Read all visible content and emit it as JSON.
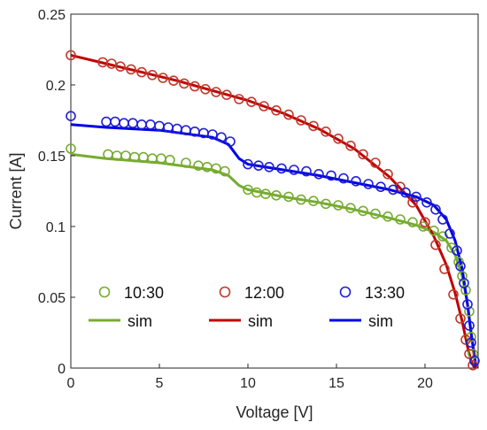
{
  "chart_data": {
    "type": "scatter",
    "xlabel": "Voltage [V]",
    "ylabel": "Current [A]",
    "xlim": [
      0,
      23
    ],
    "ylim": [
      0,
      0.25
    ],
    "xticks": [
      "0",
      "5",
      "10",
      "15",
      "20"
    ],
    "yticks": [
      "0",
      "0.05",
      "0.1",
      "0.15",
      "0.2",
      "0.25"
    ],
    "grid": false,
    "legend_position": "bottom-inside",
    "series": [
      {
        "name": "10:30",
        "kind": "measured",
        "color": "#77ac30",
        "points": [
          [
            0,
            0.155
          ],
          [
            2.1,
            0.151
          ],
          [
            2.6,
            0.15
          ],
          [
            3.1,
            0.15
          ],
          [
            3.6,
            0.149
          ],
          [
            4.1,
            0.149
          ],
          [
            4.6,
            0.148
          ],
          [
            5.1,
            0.148
          ],
          [
            5.6,
            0.147
          ],
          [
            6.5,
            0.145
          ],
          [
            7.2,
            0.143
          ],
          [
            7.7,
            0.142
          ],
          [
            8.2,
            0.141
          ],
          [
            8.7,
            0.139
          ],
          [
            10.0,
            0.126
          ],
          [
            10.5,
            0.124
          ],
          [
            11.0,
            0.123
          ],
          [
            11.6,
            0.122
          ],
          [
            12.3,
            0.121
          ],
          [
            13.0,
            0.119
          ],
          [
            13.7,
            0.118
          ],
          [
            14.4,
            0.116
          ],
          [
            15.1,
            0.115
          ],
          [
            15.8,
            0.113
          ],
          [
            16.5,
            0.111
          ],
          [
            17.2,
            0.109
          ],
          [
            17.9,
            0.107
          ],
          [
            18.6,
            0.105
          ],
          [
            19.3,
            0.103
          ],
          [
            19.9,
            0.1
          ],
          [
            20.5,
            0.097
          ],
          [
            21.0,
            0.093
          ],
          [
            21.5,
            0.085
          ],
          [
            21.9,
            0.075
          ],
          [
            22.1,
            0.065
          ],
          [
            22.3,
            0.055
          ],
          [
            22.5,
            0.04
          ],
          [
            22.6,
            0.022
          ],
          [
            22.7,
            0.01
          ]
        ]
      },
      {
        "name": "12:00",
        "kind": "measured",
        "color": "#c0392b",
        "points": [
          [
            0,
            0.221
          ],
          [
            1.8,
            0.216
          ],
          [
            2.3,
            0.215
          ],
          [
            2.8,
            0.213
          ],
          [
            3.4,
            0.211
          ],
          [
            4.0,
            0.209
          ],
          [
            4.6,
            0.207
          ],
          [
            5.2,
            0.205
          ],
          [
            5.8,
            0.203
          ],
          [
            6.4,
            0.201
          ],
          [
            7.0,
            0.199
          ],
          [
            7.6,
            0.197
          ],
          [
            8.2,
            0.195
          ],
          [
            8.8,
            0.193
          ],
          [
            9.5,
            0.19
          ],
          [
            10.2,
            0.188
          ],
          [
            10.9,
            0.185
          ],
          [
            11.6,
            0.182
          ],
          [
            12.3,
            0.179
          ],
          [
            13.0,
            0.175
          ],
          [
            13.7,
            0.171
          ],
          [
            14.4,
            0.167
          ],
          [
            15.1,
            0.162
          ],
          [
            15.8,
            0.157
          ],
          [
            16.5,
            0.151
          ],
          [
            17.2,
            0.145
          ],
          [
            17.9,
            0.137
          ],
          [
            18.6,
            0.128
          ],
          [
            19.3,
            0.117
          ],
          [
            20.0,
            0.103
          ],
          [
            20.6,
            0.087
          ],
          [
            21.1,
            0.07
          ],
          [
            21.6,
            0.052
          ],
          [
            22.0,
            0.035
          ],
          [
            22.3,
            0.02
          ],
          [
            22.5,
            0.01
          ],
          [
            22.7,
            0.002
          ]
        ]
      },
      {
        "name": "13:30",
        "kind": "measured",
        "color": "#1f1fd6",
        "points": [
          [
            0,
            0.178
          ],
          [
            2.0,
            0.174
          ],
          [
            2.5,
            0.174
          ],
          [
            3.0,
            0.173
          ],
          [
            3.5,
            0.173
          ],
          [
            4.0,
            0.172
          ],
          [
            4.5,
            0.172
          ],
          [
            5.0,
            0.171
          ],
          [
            5.5,
            0.17
          ],
          [
            6.0,
            0.169
          ],
          [
            6.5,
            0.168
          ],
          [
            7.0,
            0.167
          ],
          [
            7.5,
            0.166
          ],
          [
            8.0,
            0.165
          ],
          [
            8.5,
            0.163
          ],
          [
            9.0,
            0.16
          ],
          [
            10.0,
            0.144
          ],
          [
            10.6,
            0.143
          ],
          [
            11.2,
            0.142
          ],
          [
            11.9,
            0.141
          ],
          [
            12.6,
            0.14
          ],
          [
            13.3,
            0.139
          ],
          [
            14.0,
            0.137
          ],
          [
            14.7,
            0.136
          ],
          [
            15.4,
            0.134
          ],
          [
            16.1,
            0.132
          ],
          [
            16.8,
            0.13
          ],
          [
            17.5,
            0.128
          ],
          [
            18.2,
            0.126
          ],
          [
            18.9,
            0.124
          ],
          [
            19.5,
            0.121
          ],
          [
            20.1,
            0.117
          ],
          [
            20.6,
            0.112
          ],
          [
            21.0,
            0.105
          ],
          [
            21.4,
            0.095
          ],
          [
            21.8,
            0.083
          ],
          [
            22.0,
            0.072
          ],
          [
            22.2,
            0.06
          ],
          [
            22.4,
            0.045
          ],
          [
            22.5,
            0.03
          ],
          [
            22.6,
            0.018
          ],
          [
            22.8,
            0.005
          ]
        ]
      },
      {
        "name": "sim",
        "kind": "simulated",
        "group": "10:30",
        "color": "#77ac30",
        "points": [
          [
            0,
            0.151
          ],
          [
            2,
            0.148
          ],
          [
            5,
            0.145
          ],
          [
            8,
            0.14
          ],
          [
            8.9,
            0.136
          ],
          [
            9.5,
            0.129
          ],
          [
            10,
            0.126
          ],
          [
            12,
            0.121
          ],
          [
            14,
            0.117
          ],
          [
            16,
            0.112
          ],
          [
            18,
            0.106
          ],
          [
            19.5,
            0.101
          ],
          [
            20.5,
            0.096
          ],
          [
            21.2,
            0.09
          ],
          [
            21.7,
            0.08
          ],
          [
            22.1,
            0.065
          ],
          [
            22.4,
            0.045
          ],
          [
            22.6,
            0.025
          ],
          [
            22.8,
            0.005
          ],
          [
            22.9,
            0
          ]
        ]
      },
      {
        "name": "sim",
        "kind": "simulated",
        "group": "12:00",
        "color": "#c00000",
        "points": [
          [
            0,
            0.221
          ],
          [
            2,
            0.215
          ],
          [
            4,
            0.209
          ],
          [
            6,
            0.203
          ],
          [
            8,
            0.196
          ],
          [
            10,
            0.189
          ],
          [
            12,
            0.18
          ],
          [
            14,
            0.169
          ],
          [
            16,
            0.155
          ],
          [
            18,
            0.135
          ],
          [
            19.5,
            0.115
          ],
          [
            20.5,
            0.093
          ],
          [
            21.2,
            0.073
          ],
          [
            21.7,
            0.053
          ],
          [
            22.1,
            0.033
          ],
          [
            22.4,
            0.015
          ],
          [
            22.6,
            0.005
          ],
          [
            22.8,
            0
          ]
        ]
      },
      {
        "name": "sim",
        "kind": "simulated",
        "group": "13:30",
        "color": "#0000e6",
        "points": [
          [
            0,
            0.172
          ],
          [
            2,
            0.17
          ],
          [
            5,
            0.168
          ],
          [
            8,
            0.163
          ],
          [
            8.9,
            0.158
          ],
          [
            9.5,
            0.148
          ],
          [
            10,
            0.144
          ],
          [
            12,
            0.14
          ],
          [
            14,
            0.136
          ],
          [
            16,
            0.131
          ],
          [
            18,
            0.126
          ],
          [
            19.5,
            0.121
          ],
          [
            20.5,
            0.115
          ],
          [
            21.2,
            0.105
          ],
          [
            21.7,
            0.09
          ],
          [
            22.1,
            0.07
          ],
          [
            22.4,
            0.045
          ],
          [
            22.6,
            0.025
          ],
          [
            22.8,
            0.008
          ],
          [
            22.9,
            0
          ]
        ]
      }
    ]
  }
}
